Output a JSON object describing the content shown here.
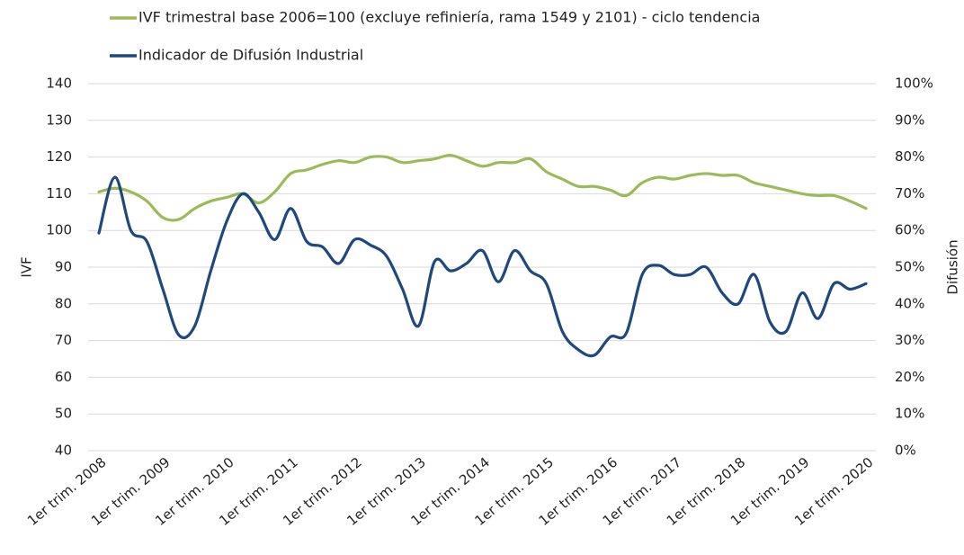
{
  "chart_data": {
    "type": "line",
    "categories": [
      "1er trim. 2008",
      null,
      null,
      null,
      "1er trim. 2009",
      null,
      null,
      null,
      "1er trim. 2010",
      null,
      null,
      null,
      "1er trim. 2011",
      null,
      null,
      null,
      "1er trim. 2012",
      null,
      null,
      null,
      "1er trim. 2013",
      null,
      null,
      null,
      "1er trim. 2014",
      null,
      null,
      null,
      "1er trim. 2015",
      null,
      null,
      null,
      "1er trim. 2016",
      null,
      null,
      null,
      "1er trim. 2017",
      null,
      null,
      null,
      "1er trim. 2018",
      null,
      null,
      null,
      "1er trim. 2019",
      null,
      null,
      null,
      "1er trim. 2020"
    ],
    "series": [
      {
        "name": "IVF trimestral base 2006=100 (excluye refiniería, rama 1549 y 2101) - ciclo tendencia",
        "color": "#9bbb59",
        "values": [
          110.5,
          111.5,
          110.5,
          108,
          103.5,
          103,
          106,
          108,
          109,
          110,
          107.5,
          110.5,
          115.5,
          116.5,
          118,
          119,
          118.5,
          120,
          120,
          118.5,
          119,
          119.5,
          120.5,
          119,
          117.5,
          118.5,
          118.5,
          119.5,
          116,
          114,
          112,
          112,
          111,
          109.5,
          113,
          114.5,
          114,
          115,
          115.5,
          115,
          115,
          113,
          112,
          111,
          110,
          109.5,
          109.5,
          108,
          106
        ]
      },
      {
        "name": "Indicador de Difusión Industrial",
        "color": "#1f497d",
        "axis": "y2",
        "values": [
          59.3,
          74.5,
          60,
          57,
          44,
          31.5,
          34,
          49,
          62.5,
          70,
          65,
          57.5,
          66,
          57,
          55.5,
          51,
          57.5,
          56,
          53,
          44,
          34,
          51.5,
          49,
          51,
          54.5,
          46,
          54.5,
          49,
          45.5,
          32.5,
          27.5,
          26,
          31,
          32,
          48,
          50.5,
          48,
          48,
          50,
          43,
          40,
          48,
          35,
          32.5,
          43,
          36,
          45.5,
          44,
          45.5
        ]
      }
    ],
    "ylabel": "IVF",
    "y2label": "Difusión",
    "ylim": [
      40,
      140
    ],
    "yticks": [
      40,
      50,
      60,
      70,
      80,
      90,
      100,
      110,
      120,
      130,
      140
    ],
    "y2lim": [
      0,
      100
    ],
    "y2ticks": [
      {
        "value": 0,
        "label": "0%"
      },
      {
        "value": 10,
        "label": "10%"
      },
      {
        "value": 20,
        "label": "20%"
      },
      {
        "value": 30,
        "label": "30%"
      },
      {
        "value": 40,
        "label": "40%"
      },
      {
        "value": 50,
        "label": "50%"
      },
      {
        "value": 60,
        "label": "60%"
      },
      {
        "value": 70,
        "label": "70%"
      },
      {
        "value": 80,
        "label": "80%"
      },
      {
        "value": 90,
        "label": "90%"
      },
      {
        "value": 100,
        "label": "100%"
      }
    ],
    "grid": true,
    "legend": "top"
  }
}
